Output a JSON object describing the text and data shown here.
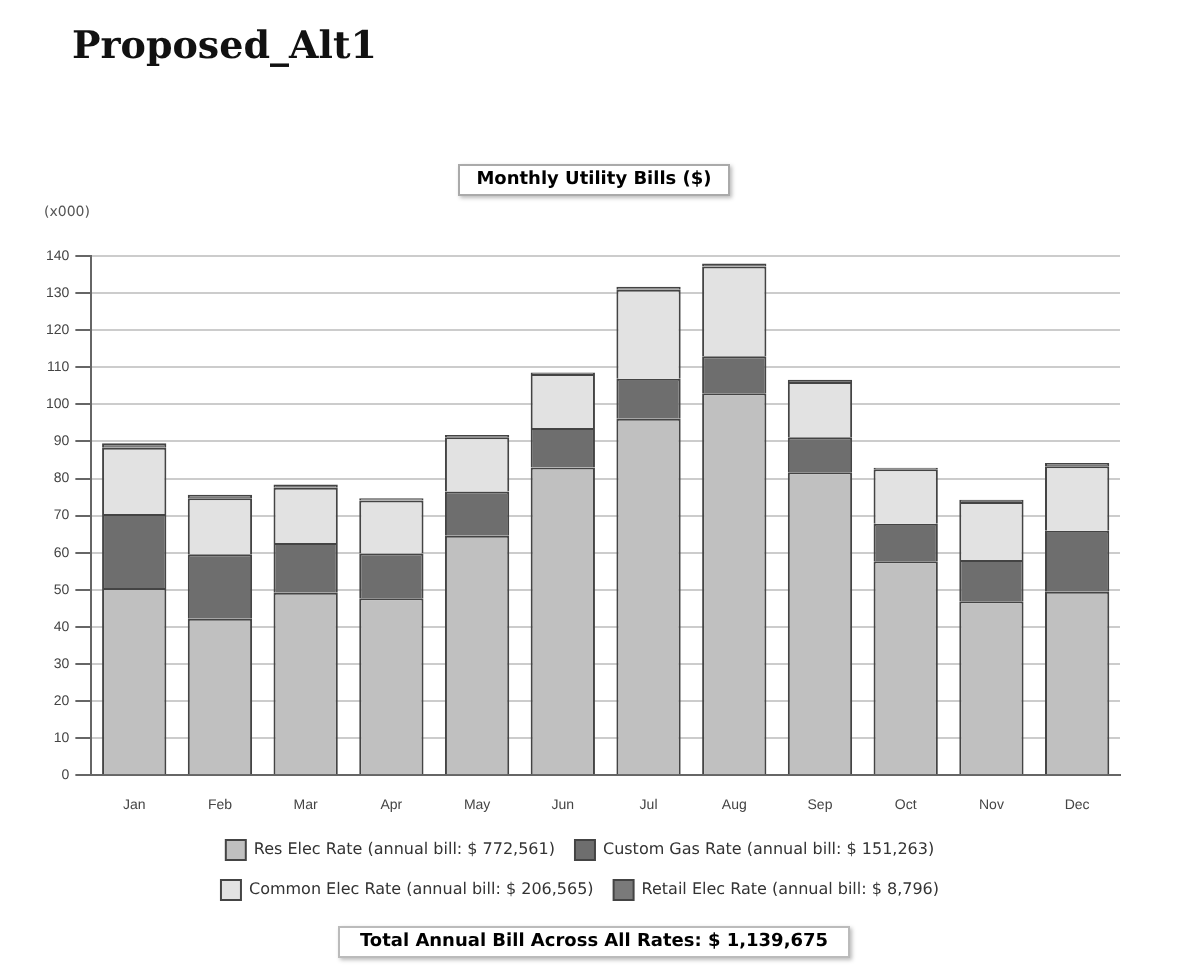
{
  "chart_data": {
    "type": "bar",
    "title": "Proposed_Alt1",
    "subtitle": "Monthly Utility Bills ($)",
    "ylabel": "(x000)",
    "categories": [
      "Jan",
      "Feb",
      "Mar",
      "Apr",
      "May",
      "Jun",
      "Jul",
      "Aug",
      "Sep",
      "Oct",
      "Nov",
      "Dec"
    ],
    "stacked": true,
    "series": [
      {
        "name": "Res Elec Rate (annual bill: $ 772,561)",
        "color": "#c0c0c0",
        "values": [
          50.5,
          42.2,
          49.2,
          47.7,
          64.6,
          83.0,
          96.1,
          103.0,
          81.7,
          57.7,
          46.9,
          49.5
        ]
      },
      {
        "name": "Custom Gas Rate (annual bill: $ 151,263)",
        "color": "#6e6e6e",
        "values": [
          19.9,
          17.4,
          13.4,
          12.1,
          11.9,
          10.6,
          10.8,
          10.0,
          9.4,
          10.1,
          11.1,
          16.4
        ]
      },
      {
        "name": "Common Elec Rate (annual bill: $ 206,565)",
        "color": "#e2e2e2",
        "values": [
          17.9,
          15.1,
          14.9,
          14.3,
          14.6,
          14.6,
          24.0,
          24.2,
          14.9,
          14.7,
          15.7,
          17.4
        ]
      },
      {
        "name": "Retail Elec Rate (annual bill: $ 8,796)",
        "color": "#7a7a7a",
        "values": [
          1.2,
          0.9,
          0.9,
          0.6,
          0.6,
          0.4,
          0.8,
          0.8,
          0.6,
          0.4,
          0.6,
          0.9
        ]
      }
    ],
    "ylim": [
      0,
      140
    ],
    "yticks": [
      0,
      10,
      20,
      30,
      40,
      50,
      60,
      70,
      80,
      90,
      100,
      110,
      120,
      130,
      140
    ],
    "grid": "y",
    "legend": "bottom",
    "annotations": [
      "Total Annual Bill Across All Rates: $ 1,139,675"
    ]
  }
}
